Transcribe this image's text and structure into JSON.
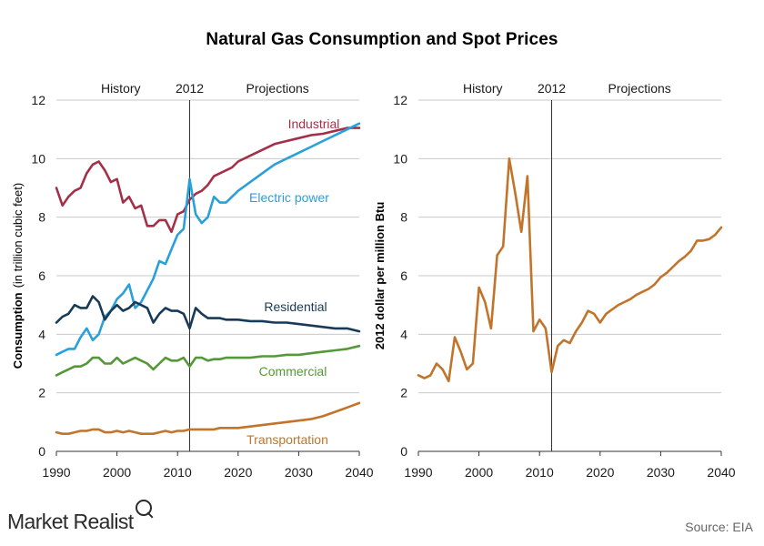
{
  "title": "Natural Gas Consumption and Spot Prices",
  "source": "Source:  EIA",
  "brand": "Market Realist",
  "chart_data": [
    {
      "type": "line",
      "ylabel_bold": "Consumption",
      "ylabel_normal": "(in trillion cubic feet)",
      "xlim": [
        1990,
        2040
      ],
      "ylim": [
        0,
        12
      ],
      "xticks": [
        1990,
        2000,
        2010,
        2020,
        2030,
        2040
      ],
      "yticks": [
        0,
        2,
        4,
        6,
        8,
        10,
        12
      ],
      "grid": true,
      "divider_year": 2012,
      "period_labels": {
        "history": "History",
        "divider": "2012",
        "projections": "Projections"
      },
      "series": [
        {
          "name": "Industrial",
          "color": "#a43048",
          "x": [
            1990,
            1991,
            1992,
            1993,
            1994,
            1995,
            1996,
            1997,
            1998,
            1999,
            2000,
            2001,
            2002,
            2003,
            2004,
            2005,
            2006,
            2007,
            2008,
            2009,
            2010,
            2011,
            2012,
            2013,
            2014,
            2015,
            2016,
            2017,
            2018,
            2019,
            2020,
            2022,
            2024,
            2026,
            2028,
            2030,
            2032,
            2034,
            2036,
            2038,
            2040
          ],
          "y": [
            9.0,
            8.4,
            8.7,
            8.9,
            9.0,
            9.5,
            9.8,
            9.9,
            9.6,
            9.2,
            9.3,
            8.5,
            8.7,
            8.3,
            8.4,
            7.7,
            7.7,
            7.9,
            7.9,
            7.5,
            8.1,
            8.2,
            8.6,
            8.8,
            8.9,
            9.1,
            9.4,
            9.5,
            9.6,
            9.7,
            9.9,
            10.1,
            10.3,
            10.5,
            10.6,
            10.7,
            10.8,
            10.85,
            10.95,
            11.05,
            11.05
          ]
        },
        {
          "name": "Electric power",
          "color": "#2aa0da",
          "x": [
            1990,
            1991,
            1992,
            1993,
            1994,
            1995,
            1996,
            1997,
            1998,
            1999,
            2000,
            2001,
            2002,
            2003,
            2004,
            2005,
            2006,
            2007,
            2008,
            2009,
            2010,
            2011,
            2012,
            2013,
            2014,
            2015,
            2016,
            2017,
            2018,
            2019,
            2020,
            2022,
            2024,
            2026,
            2028,
            2030,
            2032,
            2034,
            2036,
            2038,
            2040
          ],
          "y": [
            3.3,
            3.4,
            3.5,
            3.5,
            3.9,
            4.2,
            3.8,
            4.0,
            4.6,
            4.8,
            5.2,
            5.4,
            5.7,
            4.9,
            5.1,
            5.5,
            5.9,
            6.5,
            6.4,
            6.9,
            7.4,
            7.6,
            9.3,
            8.1,
            7.8,
            8.0,
            8.7,
            8.5,
            8.5,
            8.7,
            8.9,
            9.2,
            9.5,
            9.8,
            10.0,
            10.2,
            10.4,
            10.6,
            10.8,
            11.0,
            11.2
          ]
        },
        {
          "name": "Residential",
          "color": "#173a58",
          "x": [
            1990,
            1991,
            1992,
            1993,
            1994,
            1995,
            1996,
            1997,
            1998,
            1999,
            2000,
            2001,
            2002,
            2003,
            2004,
            2005,
            2006,
            2007,
            2008,
            2009,
            2010,
            2011,
            2012,
            2013,
            2014,
            2015,
            2016,
            2017,
            2018,
            2019,
            2020,
            2022,
            2024,
            2026,
            2028,
            2030,
            2032,
            2034,
            2036,
            2038,
            2040
          ],
          "y": [
            4.4,
            4.6,
            4.7,
            5.0,
            4.9,
            4.9,
            5.3,
            5.1,
            4.5,
            4.8,
            5.0,
            4.8,
            4.9,
            5.1,
            5.0,
            4.9,
            4.4,
            4.7,
            4.9,
            4.8,
            4.8,
            4.7,
            4.2,
            4.9,
            4.7,
            4.55,
            4.55,
            4.55,
            4.5,
            4.5,
            4.5,
            4.45,
            4.45,
            4.4,
            4.4,
            4.35,
            4.3,
            4.25,
            4.2,
            4.2,
            4.1
          ]
        },
        {
          "name": "Commercial",
          "color": "#55983a",
          "x": [
            1990,
            1991,
            1992,
            1993,
            1994,
            1995,
            1996,
            1997,
            1998,
            1999,
            2000,
            2001,
            2002,
            2003,
            2004,
            2005,
            2006,
            2007,
            2008,
            2009,
            2010,
            2011,
            2012,
            2013,
            2014,
            2015,
            2016,
            2017,
            2018,
            2019,
            2020,
            2022,
            2024,
            2026,
            2028,
            2030,
            2032,
            2034,
            2036,
            2038,
            2040
          ],
          "y": [
            2.6,
            2.7,
            2.8,
            2.9,
            2.9,
            3.0,
            3.2,
            3.2,
            3.0,
            3.0,
            3.2,
            3.0,
            3.1,
            3.2,
            3.1,
            3.0,
            2.8,
            3.0,
            3.2,
            3.1,
            3.1,
            3.2,
            2.9,
            3.2,
            3.2,
            3.1,
            3.15,
            3.15,
            3.2,
            3.2,
            3.2,
            3.2,
            3.25,
            3.25,
            3.3,
            3.3,
            3.35,
            3.4,
            3.45,
            3.5,
            3.6
          ]
        },
        {
          "name": "Transportation",
          "color": "#c2742a",
          "x": [
            1990,
            1991,
            1992,
            1993,
            1994,
            1995,
            1996,
            1997,
            1998,
            1999,
            2000,
            2001,
            2002,
            2003,
            2004,
            2005,
            2006,
            2007,
            2008,
            2009,
            2010,
            2011,
            2012,
            2013,
            2014,
            2015,
            2016,
            2017,
            2018,
            2019,
            2020,
            2022,
            2024,
            2026,
            2028,
            2030,
            2032,
            2034,
            2036,
            2038,
            2040
          ],
          "y": [
            0.65,
            0.6,
            0.6,
            0.65,
            0.7,
            0.7,
            0.75,
            0.75,
            0.65,
            0.65,
            0.7,
            0.65,
            0.7,
            0.65,
            0.6,
            0.6,
            0.6,
            0.65,
            0.7,
            0.65,
            0.7,
            0.7,
            0.75,
            0.75,
            0.75,
            0.75,
            0.75,
            0.8,
            0.8,
            0.8,
            0.8,
            0.85,
            0.9,
            0.95,
            1.0,
            1.05,
            1.1,
            1.2,
            1.35,
            1.5,
            1.65
          ]
        }
      ]
    },
    {
      "type": "line",
      "ylabel_bold": "2012 dollar per million Btu",
      "xlim": [
        1990,
        2040
      ],
      "ylim": [
        0,
        12
      ],
      "xticks": [
        1990,
        2000,
        2010,
        2020,
        2030,
        2040
      ],
      "yticks": [
        0,
        2,
        4,
        6,
        8,
        10,
        12
      ],
      "grid": true,
      "divider_year": 2012,
      "period_labels": {
        "history": "History",
        "divider": "2012",
        "projections": "Projections"
      },
      "series": [
        {
          "color": "#c2742a",
          "x": [
            1990,
            1991,
            1992,
            1993,
            1994,
            1995,
            1996,
            1997,
            1998,
            1999,
            2000,
            2001,
            2002,
            2003,
            2004,
            2005,
            2006,
            2007,
            2008,
            2009,
            2010,
            2011,
            2012,
            2013,
            2014,
            2015,
            2016,
            2017,
            2018,
            2019,
            2020,
            2021,
            2022,
            2023,
            2024,
            2025,
            2026,
            2027,
            2028,
            2029,
            2030,
            2031,
            2032,
            2033,
            2034,
            2035,
            2036,
            2037,
            2038,
            2039,
            2040
          ],
          "y": [
            2.6,
            2.5,
            2.6,
            3.0,
            2.8,
            2.4,
            3.9,
            3.4,
            2.8,
            3.0,
            5.6,
            5.1,
            4.2,
            6.7,
            7.0,
            10.0,
            8.8,
            7.5,
            9.4,
            4.1,
            4.5,
            4.2,
            2.7,
            3.6,
            3.8,
            3.7,
            4.1,
            4.4,
            4.8,
            4.7,
            4.4,
            4.7,
            4.85,
            5.0,
            5.1,
            5.2,
            5.35,
            5.45,
            5.55,
            5.7,
            5.95,
            6.1,
            6.3,
            6.5,
            6.65,
            6.85,
            7.2,
            7.2,
            7.25,
            7.4,
            7.65
          ]
        }
      ]
    }
  ]
}
